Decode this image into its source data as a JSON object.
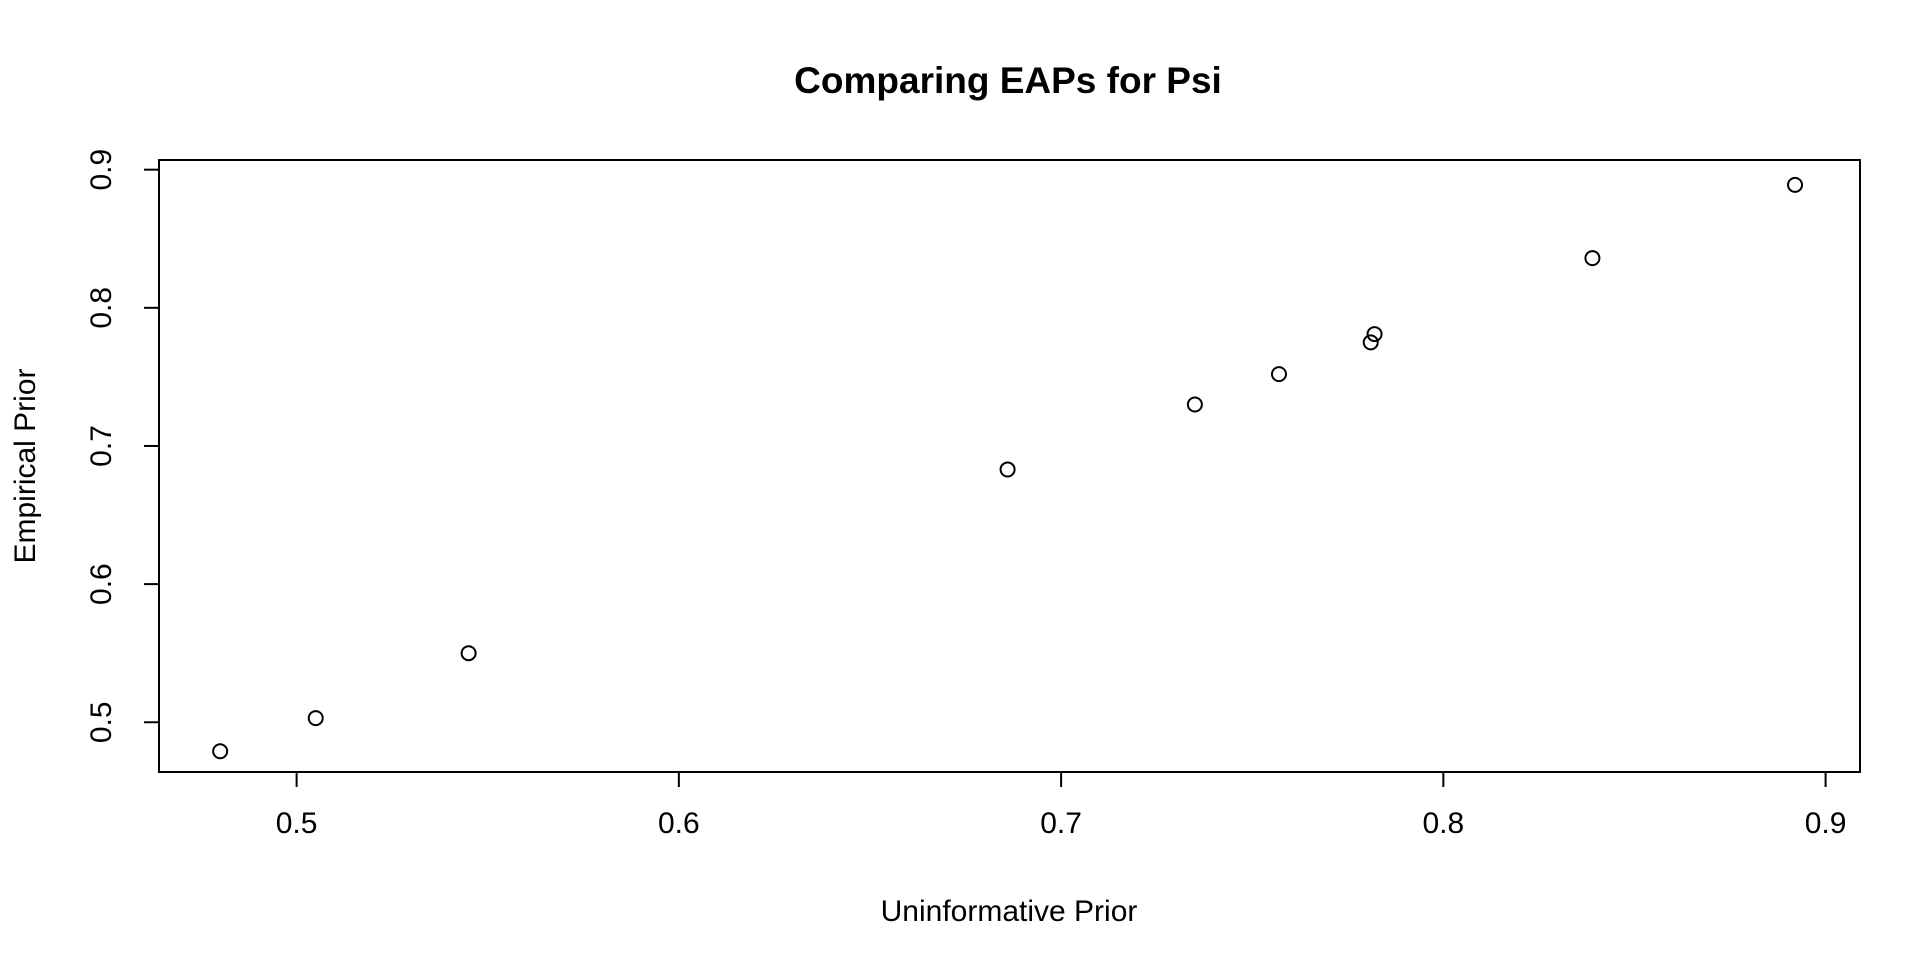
{
  "chart_data": {
    "type": "scatter",
    "title": "Comparing EAPs for Psi",
    "xlabel": "Uninformative Prior",
    "ylabel": "Empirical Prior",
    "xlim": [
      0.464,
      0.909
    ],
    "ylim": [
      0.464,
      0.907
    ],
    "xticks": [
      0.5,
      0.6,
      0.7,
      0.8,
      0.9
    ],
    "yticks": [
      0.5,
      0.6,
      0.7,
      0.8,
      0.9
    ],
    "xtick_labels": [
      "0.5",
      "0.6",
      "0.7",
      "0.8",
      "0.9"
    ],
    "ytick_labels": [
      "0.5",
      "0.6",
      "0.7",
      "0.8",
      "0.9"
    ],
    "grid": false,
    "marker": "open-circle",
    "point_color": "#000000",
    "points": [
      {
        "x": 0.48,
        "y": 0.479
      },
      {
        "x": 0.505,
        "y": 0.503
      },
      {
        "x": 0.545,
        "y": 0.55
      },
      {
        "x": 0.686,
        "y": 0.683
      },
      {
        "x": 0.735,
        "y": 0.73
      },
      {
        "x": 0.757,
        "y": 0.752
      },
      {
        "x": 0.781,
        "y": 0.775
      },
      {
        "x": 0.782,
        "y": 0.781
      },
      {
        "x": 0.839,
        "y": 0.836
      },
      {
        "x": 0.892,
        "y": 0.889
      }
    ]
  }
}
